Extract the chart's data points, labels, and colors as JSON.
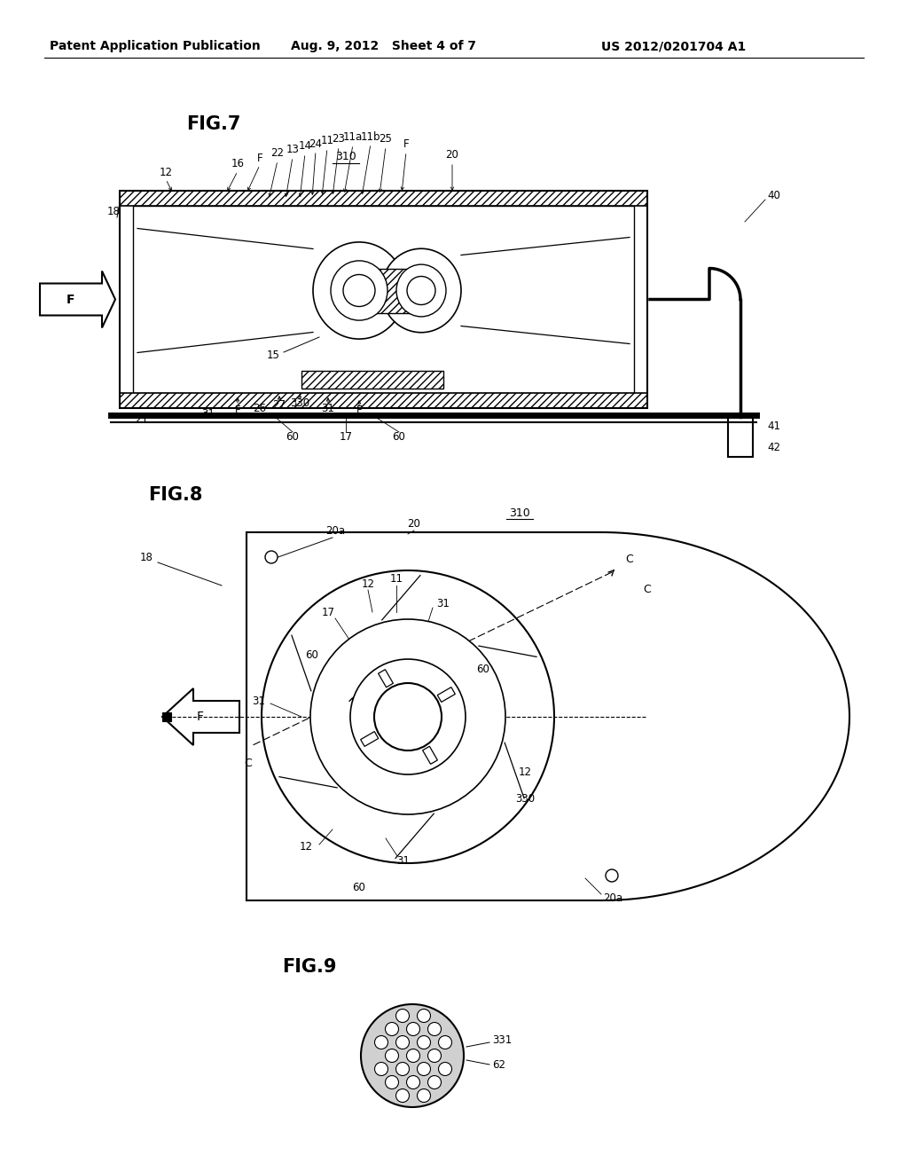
{
  "bg_color": "#ffffff",
  "text_color": "#000000",
  "header_left": "Patent Application Publication",
  "header_mid": "Aug. 9, 2012   Sheet 4 of 7",
  "header_right": "US 2012/0201704 A1",
  "fig7_label": "FIG.7",
  "fig8_label": "FIG.8",
  "fig9_label": "FIG.9"
}
